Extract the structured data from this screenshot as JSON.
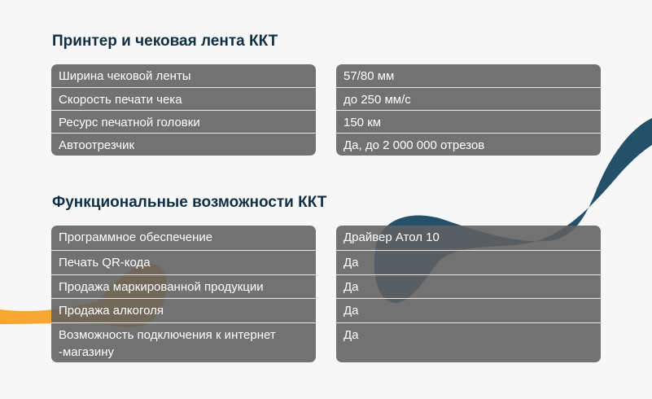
{
  "colors": {
    "background": "#f7f7f7",
    "title": "#0f2f45",
    "table": "#6f6f6f",
    "ribbon_blue": "#24506a",
    "ribbon_orange": "#f7a533"
  },
  "sections": [
    {
      "title": "Принтер и чековая лента ККТ",
      "rows": [
        {
          "label": "Ширина чековой ленты",
          "value": "57/80 мм"
        },
        {
          "label": "Скорость печати чека",
          "value": "до 250 мм/с"
        },
        {
          "label": "Ресурс печатной головки",
          "value": "150 км"
        },
        {
          "label": "Автоотрезчик",
          "value": "Да, до 2 000 000 отрезов"
        }
      ]
    },
    {
      "title": "Функциональные возможности ККТ",
      "rows": [
        {
          "label": "Программное обеспечение",
          "value": "Драйвер Атол 10"
        },
        {
          "label": "Печать QR-кода",
          "value": "Да"
        },
        {
          "label": "Продажа маркированной продукции",
          "value": "Да"
        },
        {
          "label": "Продажа алкоголя",
          "value": "Да"
        },
        {
          "label": "Возможность подключения к интернет -магазину",
          "value": "Да"
        }
      ]
    }
  ]
}
